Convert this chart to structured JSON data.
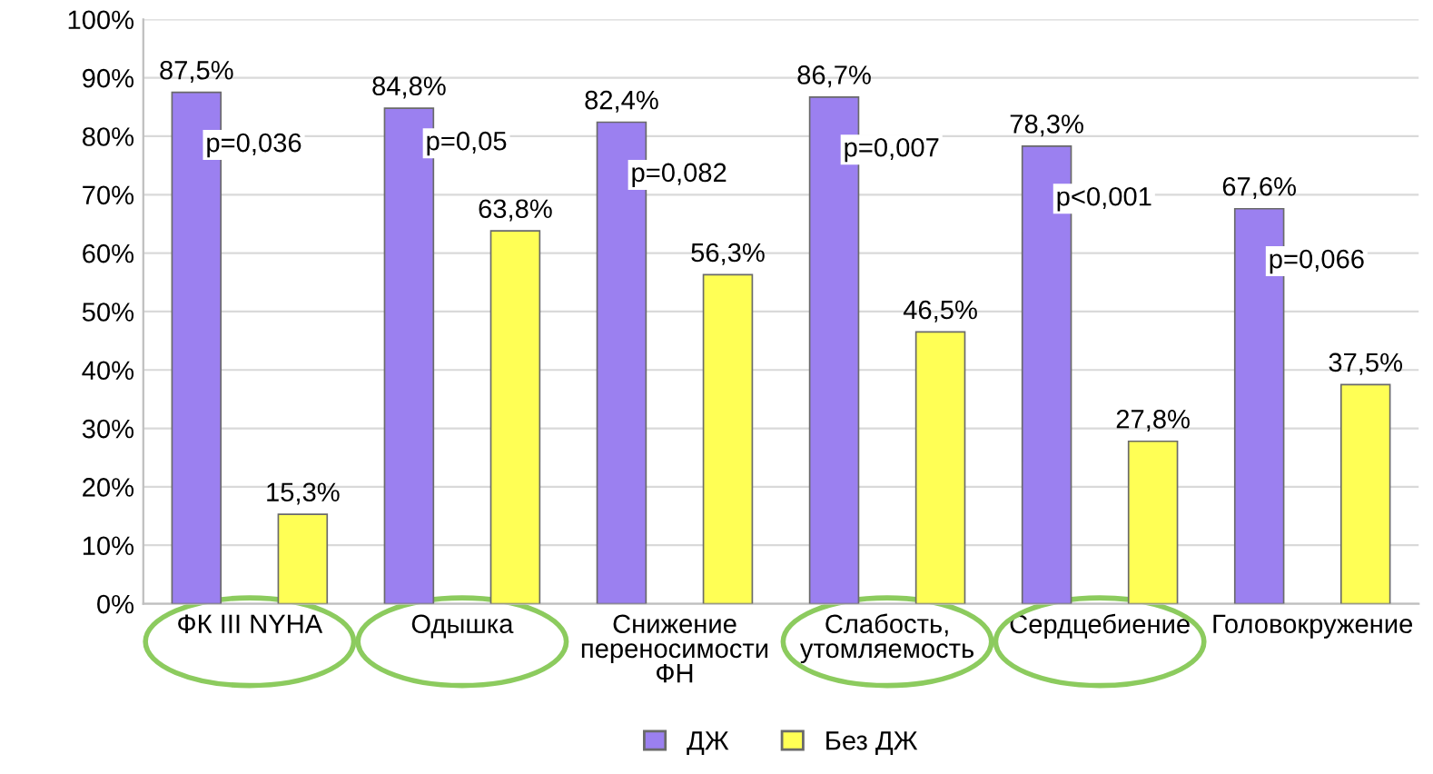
{
  "chart_data": {
    "type": "bar",
    "categories": [
      "ФК III NYHA",
      "Одышка",
      "Снижение\nпереносимости\nФН",
      "Слабость,\nутомляемость",
      "Сердцебиение",
      "Головокружение"
    ],
    "series": [
      {
        "name": "ДЖ",
        "color": "#9b80f0",
        "values": [
          87.5,
          84.8,
          82.4,
          86.7,
          78.3,
          67.6
        ],
        "value_labels": [
          "87,5%",
          "84,8%",
          "82,4%",
          "86,7%",
          "78,3%",
          "67,6%"
        ]
      },
      {
        "name": "Без ДЖ",
        "color": "#ffff55",
        "values": [
          15.3,
          63.8,
          56.3,
          46.5,
          27.8,
          37.5
        ],
        "value_labels": [
          "15,3%",
          "63,8%",
          "56,3%",
          "46,5%",
          "27,8%",
          "37,5%"
        ]
      }
    ],
    "ylim": [
      0,
      100
    ],
    "yticks": [
      {
        "value": 0,
        "label": "0%"
      },
      {
        "value": 10,
        "label": "10%"
      },
      {
        "value": 20,
        "label": "20%"
      },
      {
        "value": 30,
        "label": "30%"
      },
      {
        "value": 40,
        "label": "40%"
      },
      {
        "value": 50,
        "label": "50%"
      },
      {
        "value": 60,
        "label": "60%"
      },
      {
        "value": 70,
        "label": "70%"
      },
      {
        "value": 80,
        "label": "80%"
      },
      {
        "value": 90,
        "label": "90%"
      },
      {
        "value": 100,
        "label": "100%"
      }
    ],
    "grid": "y",
    "legend": "bottom",
    "annotations": [
      "p=0,036",
      "p=0,05",
      "p=0,082",
      "p=0,007",
      "p<0,001",
      "p=0,066"
    ]
  }
}
